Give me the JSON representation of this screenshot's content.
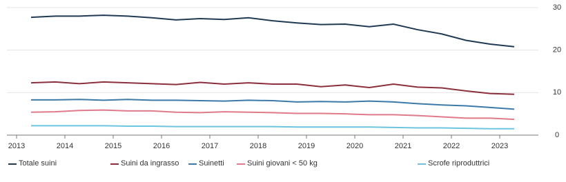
{
  "chart_data": {
    "type": "line",
    "x": [
      2013.3,
      2013.8,
      2014.3,
      2014.8,
      2015.3,
      2015.8,
      2016.3,
      2016.8,
      2017.3,
      2017.8,
      2018.3,
      2018.8,
      2019.3,
      2019.8,
      2020.3,
      2020.8,
      2021.3,
      2021.8,
      2022.3,
      2022.8,
      2023.3
    ],
    "xlim": [
      2012.8,
      2023.8
    ],
    "xticks": [
      2013,
      2014,
      2015,
      2016,
      2017,
      2018,
      2019,
      2020,
      2021,
      2022,
      2023
    ],
    "ylim": [
      0,
      30
    ],
    "yticks": [
      0,
      10,
      20,
      30
    ],
    "grid": true,
    "series": [
      {
        "name": "Totale suini",
        "color": "#1f3a52",
        "values": [
          27.7,
          28.0,
          28.0,
          28.2,
          28.0,
          27.6,
          27.1,
          27.4,
          27.2,
          27.6,
          26.9,
          26.4,
          26.0,
          26.1,
          25.5,
          26.1,
          24.8,
          23.8,
          22.3,
          21.4,
          20.8
        ]
      },
      {
        "name": "Suini da ingrasso",
        "color": "#8b2f3c",
        "values": [
          12.3,
          12.5,
          12.1,
          12.5,
          12.3,
          12.1,
          11.9,
          12.4,
          12.0,
          12.3,
          12.0,
          12.0,
          11.4,
          11.8,
          11.2,
          12.0,
          11.3,
          11.1,
          10.4,
          9.8,
          9.6
        ]
      },
      {
        "name": "Suinetti",
        "color": "#3b7aa8",
        "values": [
          8.3,
          8.3,
          8.4,
          8.2,
          8.4,
          8.2,
          8.2,
          8.1,
          8.0,
          8.2,
          8.1,
          7.8,
          7.9,
          7.8,
          8.0,
          7.8,
          7.4,
          7.1,
          6.9,
          6.5,
          6.1
        ]
      },
      {
        "name": "Suini giovani < 50 kg",
        "color": "#e07a8a",
        "values": [
          5.4,
          5.5,
          5.8,
          5.9,
          5.7,
          5.7,
          5.4,
          5.3,
          5.5,
          5.4,
          5.3,
          5.1,
          5.1,
          5.0,
          4.8,
          4.8,
          4.6,
          4.3,
          4.0,
          4.0,
          3.7
        ]
      },
      {
        "name": "Scrofe riproduttrici",
        "color": "#6cc4e0",
        "values": [
          2.2,
          2.2,
          2.2,
          2.2,
          2.1,
          2.1,
          2.0,
          2.0,
          2.0,
          2.0,
          2.0,
          1.9,
          1.9,
          1.9,
          1.9,
          1.8,
          1.7,
          1.7,
          1.6,
          1.5,
          1.5
        ]
      }
    ]
  }
}
